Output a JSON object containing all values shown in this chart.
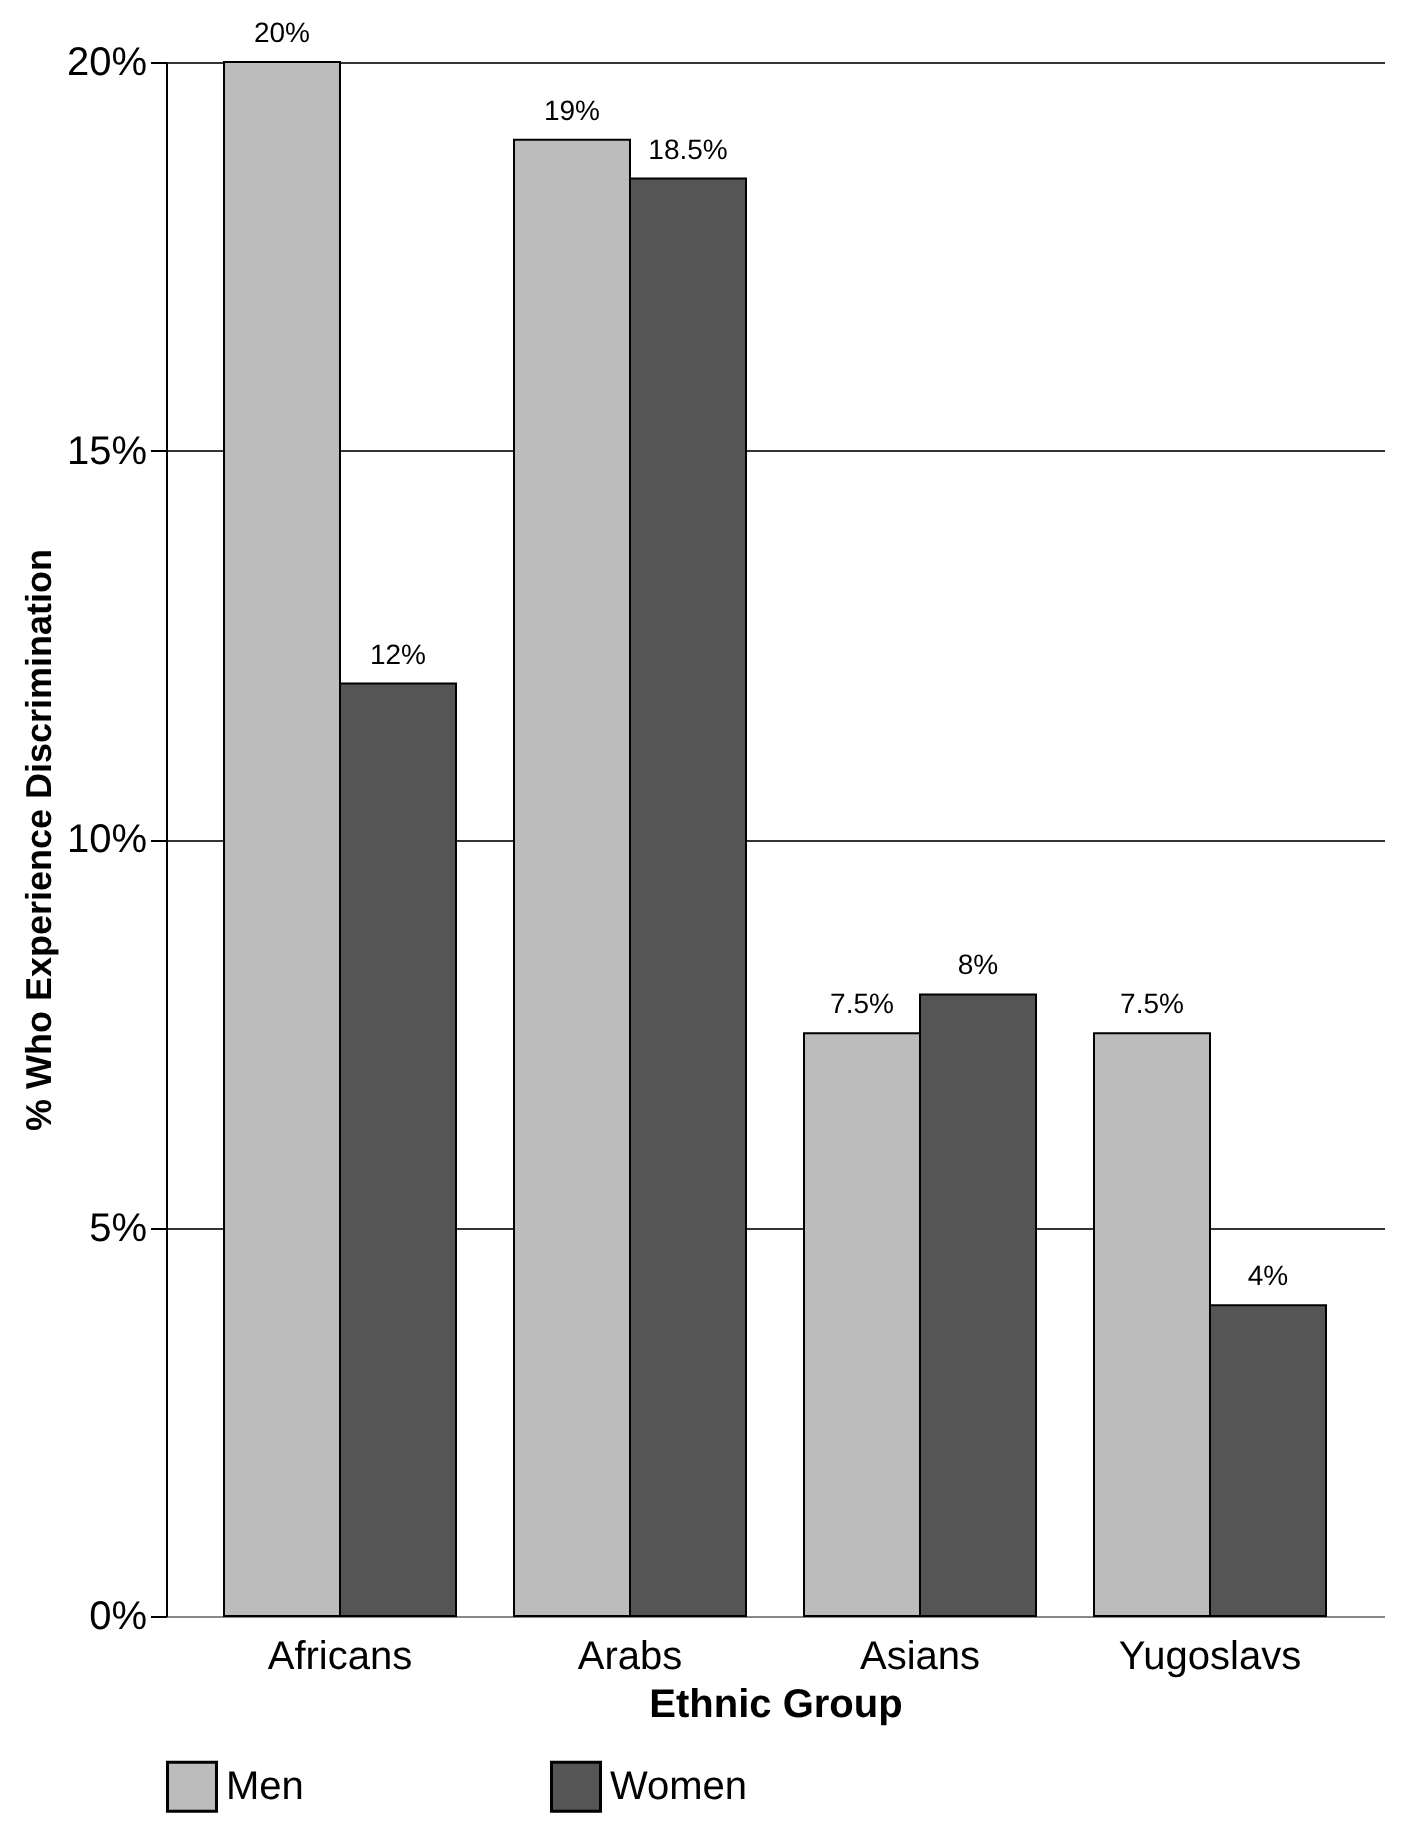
{
  "chart_data": {
    "type": "bar",
    "xlabel": "Ethnic Group",
    "ylabel": "% Who Experience Discrimination",
    "categories": [
      "Africans",
      "Arabs",
      "Asians",
      "Yugoslavs"
    ],
    "series": [
      {
        "name": "Men",
        "color": "#bcbcbc",
        "values": [
          20,
          19,
          7.5,
          7.5
        ],
        "value_labels": [
          "20%",
          "19%",
          "7.5%",
          "7.5%"
        ]
      },
      {
        "name": "Women",
        "color": "#555555",
        "values": [
          12,
          18.5,
          8,
          4
        ],
        "value_labels": [
          "12%",
          "18.5%",
          "8%",
          "4%"
        ]
      }
    ],
    "ylim": [
      0,
      20
    ],
    "yticks": [
      {
        "value": 0,
        "label": "0%"
      },
      {
        "value": 5,
        "label": "5%"
      },
      {
        "value": 10,
        "label": "10%"
      },
      {
        "value": 15,
        "label": "15%"
      },
      {
        "value": 20,
        "label": "20%"
      }
    ],
    "grid": "y",
    "legend": "bottom"
  }
}
